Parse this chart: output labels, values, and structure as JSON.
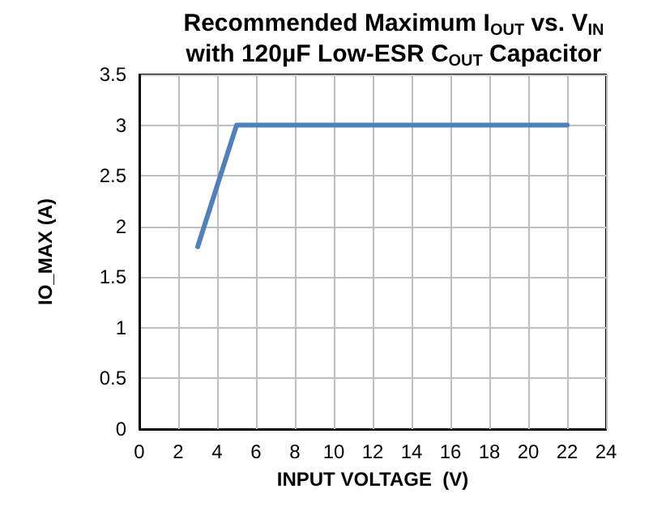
{
  "chart_data": {
    "type": "line",
    "title": "Recommended Maximum I$_{OUT}$ vs. V$_{IN}$\nwith 120µF Low-ESR C$_{OUT}$ Capacitor",
    "xlabel": "INPUT VOLTAGE  (V)",
    "ylabel": "IO_MAX (A)",
    "x": [
      3,
      5,
      22
    ],
    "series": [
      {
        "color": "#4f81bd",
        "values": [
          1.8,
          3,
          3
        ]
      }
    ],
    "xlim": [
      0,
      24
    ],
    "xticks": [
      0,
      2,
      4,
      6,
      8,
      10,
      12,
      14,
      16,
      18,
      20,
      22,
      24
    ],
    "ylim": [
      0,
      3.5
    ],
    "yticks": [
      0,
      0.5,
      1,
      1.5,
      2,
      2.5,
      3,
      3.5
    ],
    "grid": true,
    "marker": "none",
    "line_style": "solid"
  }
}
